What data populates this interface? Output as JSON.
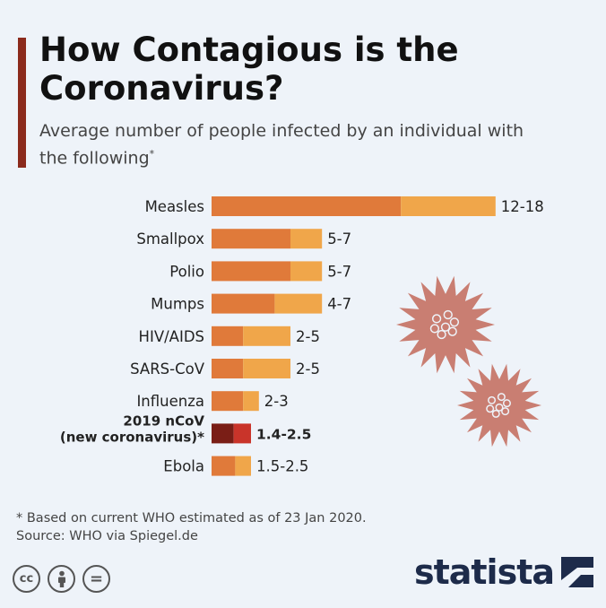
{
  "header": {
    "title": "How Contagious is the Coronavirus?",
    "subtitle": "Average number of people infected by an individual with the following",
    "subtitle_mark": "*",
    "accent_color": "#8b2a1c"
  },
  "chart_data": {
    "type": "bar",
    "orientation": "horizontal",
    "stacked_range": true,
    "categories": [
      "Measles",
      "Smallpox",
      "Polio",
      "Mumps",
      "HIV/AIDS",
      "SARS-CoV",
      "Influenza",
      "2019 nCoV\n(new coronavirus)*",
      "Ebola"
    ],
    "category_lines": [
      [
        "Measles"
      ],
      [
        "Smallpox"
      ],
      [
        "Polio"
      ],
      [
        "Mumps"
      ],
      [
        "HIV/AIDS"
      ],
      [
        "SARS-CoV"
      ],
      [
        "Influenza"
      ],
      [
        "2019 nCoV",
        "(new coronavirus)*"
      ],
      [
        "Ebola"
      ]
    ],
    "series": [
      {
        "values": [
          12,
          5,
          5,
          4,
          2,
          2,
          2,
          1.4,
          1.5
        ]
      },
      {
        "values": [
          18,
          7,
          7,
          7,
          5,
          5,
          3,
          2.5,
          2.5
        ]
      }
    ],
    "value_labels": [
      "12-18",
      "5-7",
      "5-7",
      "4-7",
      "2-5",
      "2-5",
      "2-3",
      "1.4-2.5",
      "1.5-2.5"
    ],
    "highlight_index": 7,
    "colors": {
      "low": "#e07a3a",
      "high": "#f0a64a",
      "highlight_low": "#7a1e16",
      "highlight_high": "#c9342a",
      "virus": "#c97e72"
    },
    "xlim": [
      0,
      18
    ]
  },
  "footer": {
    "note": "* Based on current WHO estimated as of 23 Jan 2020.",
    "source": "Source: WHO via Spiegel.de",
    "license_icons": [
      "cc-icon",
      "by-icon",
      "nd-icon"
    ],
    "cc_text": "cc",
    "nd_text": "=",
    "brand": "statista"
  }
}
